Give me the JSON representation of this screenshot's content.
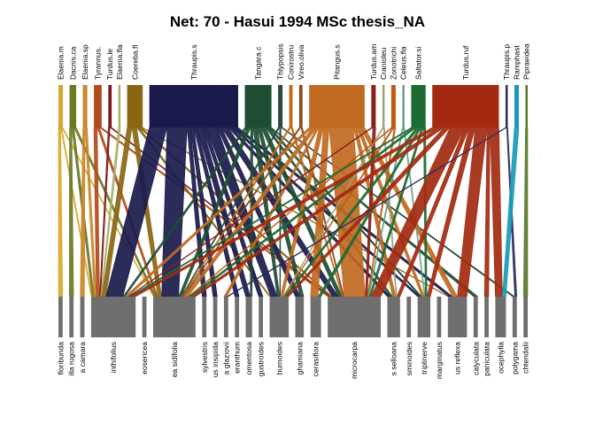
{
  "title": "Net: 70 - Hasui 1994 MSc thesis_NA",
  "higher": [
    {
      "name": "Elaenia.m",
      "w": 4,
      "color": "#d9a82b"
    },
    {
      "name": "Dacnis.ca",
      "w": 6,
      "color": "#6b7a22"
    },
    {
      "name": "Elaenia.sp",
      "w": 4,
      "color": "#c9882a"
    },
    {
      "name": "Tyrannus.",
      "w": 7,
      "color": "#b34a1c"
    },
    {
      "name": "Turdus.le",
      "w": 3,
      "color": "#7a1a1a"
    },
    {
      "name": "Elaenia.fla",
      "w": 2,
      "color": "#a9b06b"
    },
    {
      "name": "Coereba.fl",
      "w": 14,
      "color": "#8a6512"
    },
    {
      "name": "Thraupis.s",
      "w": 80,
      "color": "#1a1a4d"
    },
    {
      "name": "Tangara.c",
      "w": 24,
      "color": "#1e4d33"
    },
    {
      "name": "Thlypopsis",
      "w": 4,
      "color": "#2b4a3a"
    },
    {
      "name": "Conirostru",
      "w": 3,
      "color": "#c06a12"
    },
    {
      "name": "Vireo.oliva",
      "w": 3,
      "color": "#8a4a22"
    },
    {
      "name": "Pitangus.s",
      "w": 50,
      "color": "#c06a22"
    },
    {
      "name": "Turdus.am",
      "w": 4,
      "color": "#8a1f1a"
    },
    {
      "name": "Cranioleu",
      "w": 2,
      "color": "#9aa07a"
    },
    {
      "name": "Zonotrichi",
      "w": 4,
      "color": "#c05a12"
    },
    {
      "name": "Celeus.fla",
      "w": 2,
      "color": "#6aa08a"
    },
    {
      "name": "Saltator.si",
      "w": 13,
      "color": "#1e6a33"
    },
    {
      "name": "Turdus.ruf",
      "w": 60,
      "color": "#a32a10"
    },
    {
      "name": "Thraupis.p",
      "w": 2,
      "color": "#2a2a5a"
    },
    {
      "name": "Ramphast",
      "w": 4,
      "color": "#1a9ab8"
    },
    {
      "name": "Pipraeidea",
      "w": 2,
      "color": "#5a7a2a"
    }
  ],
  "lower": [
    {
      "name": "floribunda",
      "w": 4
    },
    {
      "name": "illa rugosa",
      "w": 4
    },
    {
      "name": "a camara",
      "w": 4
    },
    {
      "name": "inthifolius",
      "w": 42
    },
    {
      "name": "eosericea",
      "w": 4
    },
    {
      "name": "ea sidifolia",
      "w": 40
    },
    {
      "name": "sylvestris",
      "w": 4
    },
    {
      "name": "us insipida",
      "w": 4
    },
    {
      "name": "a glaziovii",
      "w": 4
    },
    {
      "name": "eranthum",
      "w": 4
    },
    {
      "name": "omentosa",
      "w": 6
    },
    {
      "name": "gustroides",
      "w": 4
    },
    {
      "name": "burnoides",
      "w": 18
    },
    {
      "name": "ghamiana",
      "w": 8
    },
    {
      "name": "cerasiflora",
      "w": 10
    },
    {
      "name": "microcarpa",
      "w": 50
    },
    {
      "name": "s selloana",
      "w": 12
    },
    {
      "name": "sminoides",
      "w": 4
    },
    {
      "name": "triplinerve",
      "w": 12
    },
    {
      "name": "marginatus",
      "w": 4
    },
    {
      "name": "us reflexa",
      "w": 18
    },
    {
      "name": "calyculata",
      "w": 4
    },
    {
      "name": "paniculata",
      "w": 4
    },
    {
      "name": "ocephylla",
      "w": 10
    },
    {
      "name": "polygama",
      "w": 4
    },
    {
      "name": "chtendalii",
      "w": 4
    }
  ],
  "links": [
    [
      0,
      0,
      2
    ],
    [
      0,
      3,
      1
    ],
    [
      0,
      5,
      1
    ],
    [
      1,
      1,
      2
    ],
    [
      1,
      3,
      2
    ],
    [
      1,
      5,
      2
    ],
    [
      2,
      2,
      2
    ],
    [
      2,
      3,
      2
    ],
    [
      3,
      3,
      3
    ],
    [
      3,
      5,
      2
    ],
    [
      3,
      15,
      2
    ],
    [
      4,
      3,
      1
    ],
    [
      4,
      15,
      1
    ],
    [
      5,
      3,
      1
    ],
    [
      6,
      3,
      4
    ],
    [
      6,
      5,
      4
    ],
    [
      6,
      12,
      2
    ],
    [
      6,
      15,
      2
    ],
    [
      6,
      20,
      1
    ],
    [
      7,
      3,
      16
    ],
    [
      7,
      5,
      18
    ],
    [
      7,
      6,
      3
    ],
    [
      7,
      7,
      3
    ],
    [
      7,
      9,
      3
    ],
    [
      7,
      10,
      5
    ],
    [
      7,
      11,
      3
    ],
    [
      7,
      12,
      10
    ],
    [
      7,
      13,
      4
    ],
    [
      7,
      15,
      6
    ],
    [
      7,
      16,
      3
    ],
    [
      7,
      18,
      3
    ],
    [
      7,
      20,
      3
    ],
    [
      8,
      3,
      2
    ],
    [
      8,
      5,
      3
    ],
    [
      8,
      10,
      2
    ],
    [
      8,
      12,
      4
    ],
    [
      8,
      13,
      3
    ],
    [
      8,
      15,
      4
    ],
    [
      8,
      16,
      2
    ],
    [
      8,
      18,
      2
    ],
    [
      8,
      21,
      1
    ],
    [
      9,
      5,
      1
    ],
    [
      9,
      12,
      1
    ],
    [
      9,
      24,
      1
    ],
    [
      10,
      5,
      1
    ],
    [
      10,
      15,
      1
    ],
    [
      11,
      5,
      1
    ],
    [
      11,
      15,
      1
    ],
    [
      12,
      3,
      3
    ],
    [
      12,
      5,
      4
    ],
    [
      12,
      8,
      2
    ],
    [
      12,
      12,
      4
    ],
    [
      12,
      14,
      5
    ],
    [
      12,
      15,
      22
    ],
    [
      12,
      16,
      3
    ],
    [
      12,
      18,
      3
    ],
    [
      12,
      20,
      4
    ],
    [
      13,
      3,
      1
    ],
    [
      13,
      15,
      2
    ],
    [
      14,
      12,
      1
    ],
    [
      14,
      16,
      1
    ],
    [
      15,
      5,
      1
    ],
    [
      15,
      12,
      1
    ],
    [
      15,
      15,
      1
    ],
    [
      16,
      15,
      1
    ],
    [
      16,
      18,
      1
    ],
    [
      17,
      3,
      2
    ],
    [
      17,
      5,
      3
    ],
    [
      17,
      12,
      3
    ],
    [
      17,
      14,
      2
    ],
    [
      17,
      15,
      2
    ],
    [
      17,
      18,
      2
    ],
    [
      18,
      3,
      4
    ],
    [
      18,
      5,
      4
    ],
    [
      18,
      12,
      4
    ],
    [
      18,
      15,
      10
    ],
    [
      18,
      16,
      3
    ],
    [
      18,
      18,
      4
    ],
    [
      18,
      20,
      8
    ],
    [
      18,
      22,
      2
    ],
    [
      18,
      23,
      6
    ],
    [
      19,
      8,
      1
    ],
    [
      19,
      24,
      1
    ],
    [
      20,
      23,
      3
    ],
    [
      21,
      25,
      2
    ]
  ]
}
